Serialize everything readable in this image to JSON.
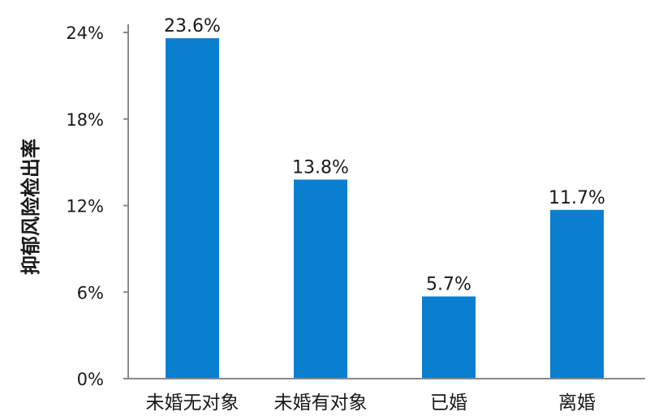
{
  "chart_data": {
    "type": "bar",
    "title": "",
    "xlabel": "",
    "ylabel": "抑郁风险检出率",
    "categories": [
      "未婚无对象",
      "未婚有对象",
      "已婚",
      "离婚"
    ],
    "values": [
      23.6,
      13.8,
      5.7,
      11.7
    ],
    "value_labels": [
      "23.6%",
      "13.8%",
      "5.7%",
      "11.7%"
    ],
    "ylim": [
      0,
      24
    ],
    "yticks": [
      0,
      6,
      12,
      18,
      24
    ],
    "ytick_labels": [
      "0%",
      "6%",
      "12%",
      "18%",
      "24%"
    ],
    "grid": false,
    "legend": "none",
    "bar_color": "#0a7fcf"
  }
}
